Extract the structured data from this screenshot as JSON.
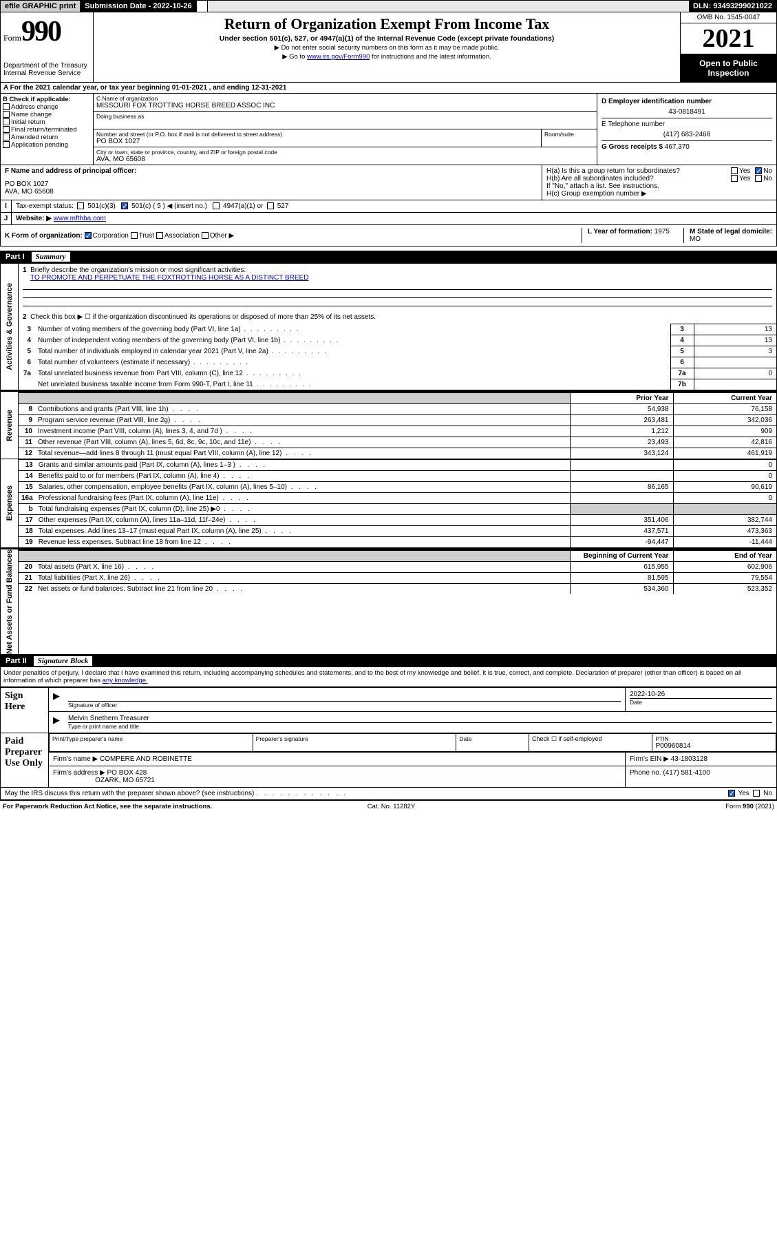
{
  "topbar": {
    "efile": "efile GRAPHIC print",
    "submission_label": "Submission Date - 2022-10-26",
    "dln": "DLN: 93493299021022"
  },
  "header": {
    "form_prefix": "Form",
    "form_number": "990",
    "dept": "Department of the Treasury",
    "irs": "Internal Revenue Service",
    "title": "Return of Organization Exempt From Income Tax",
    "subtitle": "Under section 501(c), 527, or 4947(a)(1) of the Internal Revenue Code (except private foundations)",
    "note1": "▶ Do not enter social security numbers on this form as it may be made public.",
    "note2_pre": "▶ Go to ",
    "note2_link": "www.irs.gov/Form990",
    "note2_post": " for instructions and the latest information.",
    "omb": "OMB No. 1545-0047",
    "year": "2021",
    "open": "Open to Public Inspection"
  },
  "line_a": "A For the 2021 calendar year, or tax year beginning 01-01-2021   , and ending 12-31-2021",
  "col_b": {
    "header": "B Check if applicable:",
    "items": [
      "Address change",
      "Name change",
      "Initial return",
      "Final return/terminated",
      "Amended return",
      "Application pending"
    ]
  },
  "col_c": {
    "name_lbl": "C Name of organization",
    "name": "MISSOURI FOX TROTTING HORSE BREED ASSOC INC",
    "dba_lbl": "Doing business as",
    "street_lbl": "Number and street (or P.O. box if mail is not delivered to street address)",
    "street": "PO BOX 1027",
    "suite_lbl": "Room/suite",
    "city_lbl": "City or town, state or province, country, and ZIP or foreign postal code",
    "city": "AVA, MO  65608"
  },
  "col_d": {
    "ein_lbl": "D Employer identification number",
    "ein": "43-0818491",
    "tel_lbl": "E Telephone number",
    "tel": "(417) 683-2468",
    "gross_lbl": "G Gross receipts $",
    "gross": "467,370"
  },
  "row_f": {
    "f_lbl": "F Name and address of principal officer:",
    "f_addr1": "PO BOX 1027",
    "f_addr2": "AVA, MO  65608",
    "ha": "H(a)  Is this a group return for subordinates?",
    "hb": "H(b)  Are all subordinates included?",
    "hb_note": "If \"No,\" attach a list. See instructions.",
    "hc": "H(c)  Group exemption number ▶"
  },
  "row_i": {
    "i_lbl": "Tax-exempt status:",
    "opt1": "501(c)(3)",
    "opt2": "501(c) ( 5 ) ◀ (insert no.)",
    "opt3": "4947(a)(1) or",
    "opt4": "527"
  },
  "row_j": {
    "lbl": "Website: ▶",
    "val": "www.mfthba.com"
  },
  "row_k": {
    "lbl": "K Form of organization:",
    "opts": [
      "Corporation",
      "Trust",
      "Association",
      "Other ▶"
    ],
    "year_lbl": "L Year of formation:",
    "year": "1975",
    "state_lbl": "M State of legal domicile:",
    "state": "MO"
  },
  "part1": {
    "header_num": "Part I",
    "header_title": "Summary",
    "q1_lbl": "Briefly describe the organization's mission or most significant activities:",
    "q1_val": "TO PROMOTE AND PERPETUATE THE FOXTROTTING HORSE AS A DISTINCT BREED",
    "q2": "Check this box ▶ ☐  if the organization discontinued its operations or disposed of more than 25% of its net assets.",
    "sidebar_gov": "Activities & Governance",
    "sidebar_rev": "Revenue",
    "sidebar_exp": "Expenses",
    "sidebar_net": "Net Assets or Fund Balances",
    "gov_rows": [
      {
        "n": "3",
        "t": "Number of voting members of the governing body (Part VI, line 1a)",
        "box": "3",
        "v": "13"
      },
      {
        "n": "4",
        "t": "Number of independent voting members of the governing body (Part VI, line 1b)",
        "box": "4",
        "v": "13"
      },
      {
        "n": "5",
        "t": "Total number of individuals employed in calendar year 2021 (Part V, line 2a)",
        "box": "5",
        "v": "3"
      },
      {
        "n": "6",
        "t": "Total number of volunteers (estimate if necessary)",
        "box": "6",
        "v": ""
      },
      {
        "n": "7a",
        "t": "Total unrelated business revenue from Part VIII, column (C), line 12",
        "box": "7a",
        "v": "0"
      },
      {
        "n": "",
        "t": "Net unrelated business taxable income from Form 990-T, Part I, line 11",
        "box": "7b",
        "v": ""
      }
    ],
    "col_prior": "Prior Year",
    "col_current": "Current Year",
    "rev_rows": [
      {
        "n": "8",
        "t": "Contributions and grants (Part VIII, line 1h)",
        "py": "54,938",
        "cy": "76,158"
      },
      {
        "n": "9",
        "t": "Program service revenue (Part VIII, line 2g)",
        "py": "263,481",
        "cy": "342,036"
      },
      {
        "n": "10",
        "t": "Investment income (Part VIII, column (A), lines 3, 4, and 7d )",
        "py": "1,212",
        "cy": "909"
      },
      {
        "n": "11",
        "t": "Other revenue (Part VIII, column (A), lines 5, 6d, 8c, 9c, 10c, and 11e)",
        "py": "23,493",
        "cy": "42,816"
      },
      {
        "n": "12",
        "t": "Total revenue—add lines 8 through 11 (must equal Part VIII, column (A), line 12)",
        "py": "343,124",
        "cy": "461,919"
      }
    ],
    "exp_rows": [
      {
        "n": "13",
        "t": "Grants and similar amounts paid (Part IX, column (A), lines 1–3 )",
        "py": "",
        "cy": "0"
      },
      {
        "n": "14",
        "t": "Benefits paid to or for members (Part IX, column (A), line 4)",
        "py": "",
        "cy": "0"
      },
      {
        "n": "15",
        "t": "Salaries, other compensation, employee benefits (Part IX, column (A), lines 5–10)",
        "py": "86,165",
        "cy": "90,619"
      },
      {
        "n": "16a",
        "t": "Professional fundraising fees (Part IX, column (A), line 11e)",
        "py": "",
        "cy": "0"
      },
      {
        "n": "b",
        "t": "Total fundraising expenses (Part IX, column (D), line 25) ▶0",
        "py": "shaded",
        "cy": "shaded"
      },
      {
        "n": "17",
        "t": "Other expenses (Part IX, column (A), lines 11a–11d, 11f–24e)",
        "py": "351,406",
        "cy": "382,744"
      },
      {
        "n": "18",
        "t": "Total expenses. Add lines 13–17 (must equal Part IX, column (A), line 25)",
        "py": "437,571",
        "cy": "473,363"
      },
      {
        "n": "19",
        "t": "Revenue less expenses. Subtract line 18 from line 12",
        "py": "-94,447",
        "cy": "-11,444"
      }
    ],
    "col_begin": "Beginning of Current Year",
    "col_end": "End of Year",
    "net_rows": [
      {
        "n": "20",
        "t": "Total assets (Part X, line 16)",
        "py": "615,955",
        "cy": "602,906"
      },
      {
        "n": "21",
        "t": "Total liabilities (Part X, line 26)",
        "py": "81,595",
        "cy": "79,554"
      },
      {
        "n": "22",
        "t": "Net assets or fund balances. Subtract line 21 from line 20",
        "py": "534,360",
        "cy": "523,352"
      }
    ]
  },
  "part2": {
    "header_num": "Part II",
    "header_title": "Signature Block",
    "intro": "Under penalties of perjury, I declare that I have examined this return, including accompanying schedules and statements, and to the best of my knowledge and belief, it is true, correct, and complete. Declaration of preparer (other than officer) is based on all information of which preparer has ",
    "intro_link": "any knowledge.",
    "sign_here": "Sign Here",
    "sig_officer_lbl": "Signature of officer",
    "date_lbl": "Date",
    "date_val": "2022-10-26",
    "name_title": "Melvin Snethern Treasurer",
    "name_title_lbl": "Type or print name and title",
    "paid": "Paid Preparer Use Only",
    "prep_name_lbl": "Print/Type preparer's name",
    "prep_sig_lbl": "Preparer's signature",
    "prep_date_lbl": "Date",
    "check_self": "Check ☐ if self-employed",
    "ptin_lbl": "PTIN",
    "ptin": "P00960814",
    "firm_name_lbl": "Firm's name    ▶",
    "firm_name": "COMPERE AND ROBINETTE",
    "firm_ein_lbl": "Firm's EIN ▶",
    "firm_ein": "43-1803128",
    "firm_addr_lbl": "Firm's address ▶",
    "firm_addr1": "PO BOX 428",
    "firm_addr2": "OZARK, MO  65721",
    "phone_lbl": "Phone no.",
    "phone": "(417) 581-4100",
    "discuss": "May the IRS discuss this return with the preparer shown above? (see instructions)"
  },
  "footer": {
    "left": "For Paperwork Reduction Act Notice, see the separate instructions.",
    "mid": "Cat. No. 11282Y",
    "right": "Form 990 (2021)"
  },
  "colors": {
    "link": "#0000cc",
    "black": "#000000",
    "check_blue": "#1a5fd0",
    "shade": "#cfcfcf"
  }
}
